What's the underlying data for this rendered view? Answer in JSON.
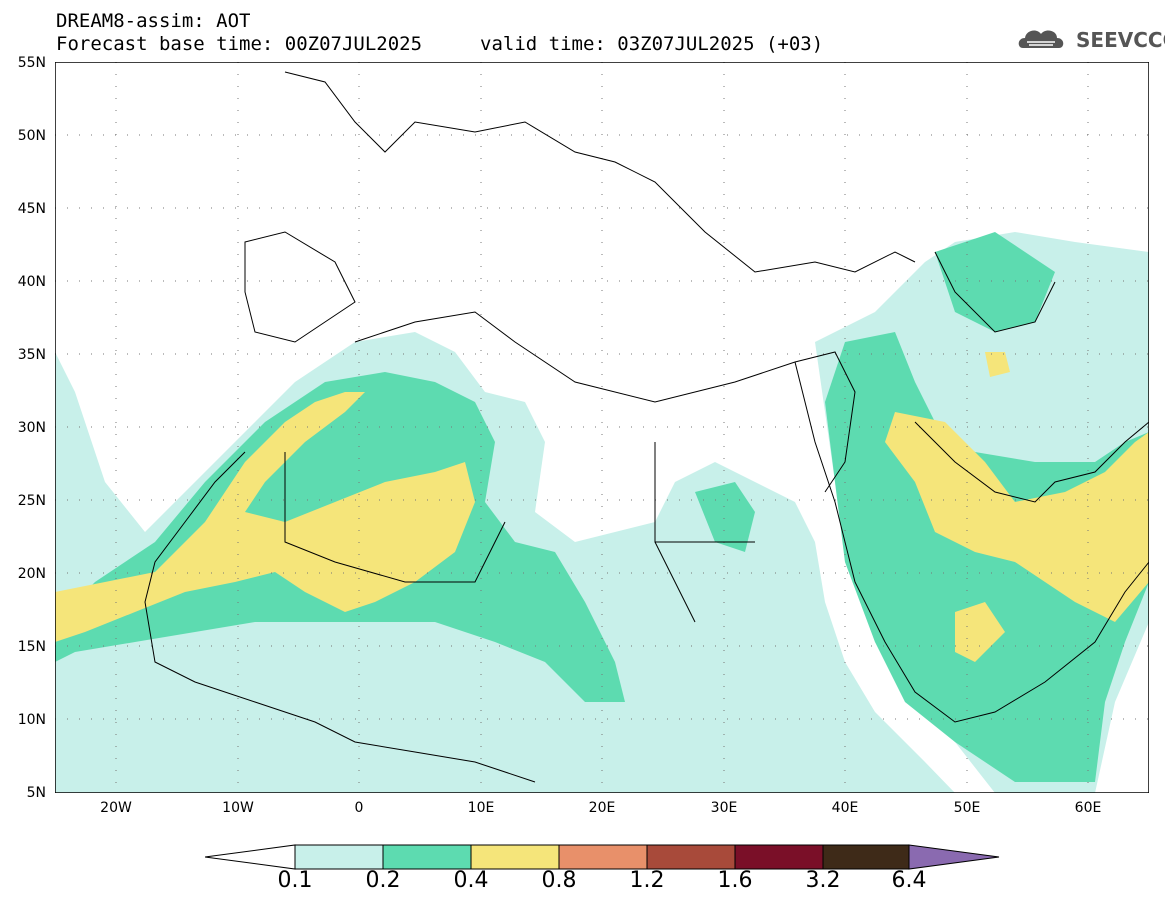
{
  "header": {
    "line1": "DREAM8-assim: AOT",
    "line2": "Forecast base time: 00Z07JUL2025",
    "line3": "valid time: 03Z07JUL2025 (+03)",
    "logo_text": "SEEVCCC"
  },
  "map": {
    "lat_labels": [
      "55N",
      "50N",
      "45N",
      "40N",
      "35N",
      "30N",
      "25N",
      "20N",
      "15N",
      "10N",
      "5N"
    ],
    "lon_labels": [
      "20W",
      "10W",
      "0",
      "10E",
      "20E",
      "30E",
      "40E",
      "50E",
      "60E"
    ],
    "lat_range": [
      5,
      55
    ],
    "lon_range": [
      -25,
      65
    ],
    "colors": {
      "c1": "#c8f0ea",
      "c2": "#5ddbb0",
      "c3": "#f5e57a",
      "border": "#000000"
    }
  },
  "colorbar": {
    "labels": [
      "0.1",
      "0.2",
      "0.4",
      "0.8",
      "1.2",
      "1.6",
      "3.2",
      "6.4"
    ],
    "colors": [
      "#ffffff",
      "#c8f0ea",
      "#5ddbb0",
      "#f5e57a",
      "#e8906a",
      "#a84a3a",
      "#7a0f28",
      "#3e2a18",
      "#8a6ab0"
    ]
  }
}
